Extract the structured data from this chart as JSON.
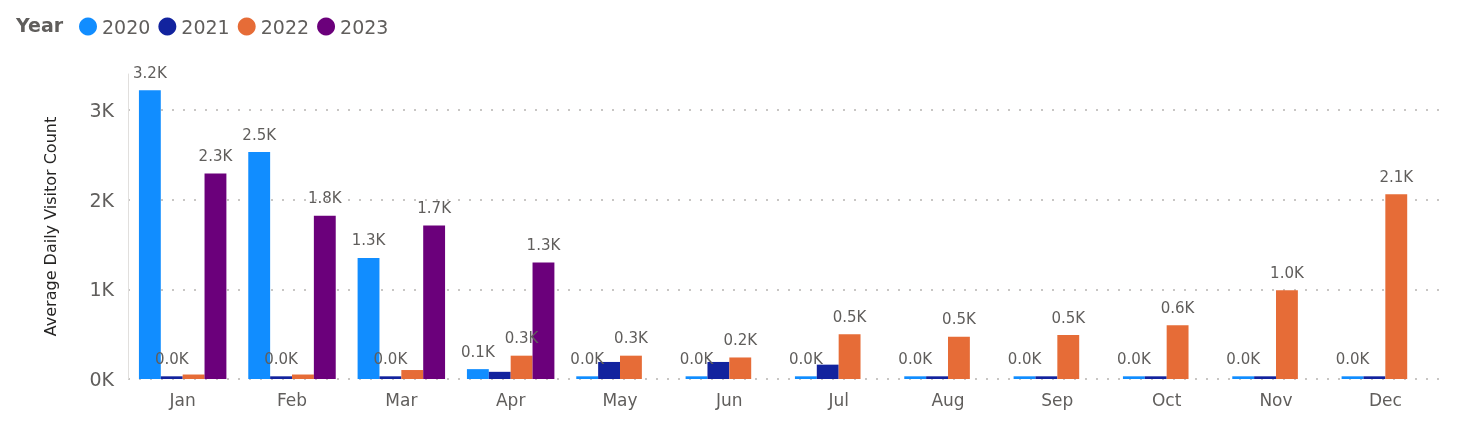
{
  "chart_data": {
    "type": "bar",
    "ylabel": "Average Daily Visitor Count",
    "legend_title": "Year",
    "legend": "top left",
    "grid": "y",
    "categories": [
      "Jan",
      "Feb",
      "Mar",
      "Apr",
      "May",
      "Jun",
      "Jul",
      "Aug",
      "Sep",
      "Oct",
      "Nov",
      "Dec"
    ],
    "ylim": [
      0,
      3400
    ],
    "yticks": [
      {
        "value": 0,
        "label": "0K"
      },
      {
        "value": 1000,
        "label": "1K"
      },
      {
        "value": 2000,
        "label": "2K"
      },
      {
        "value": 3000,
        "label": "3K"
      }
    ],
    "series": [
      {
        "name": "2020",
        "color": "#118dff",
        "values": [
          3220,
          2530,
          1350,
          110,
          30,
          30,
          30,
          30,
          30,
          30,
          30,
          30
        ],
        "value_labels": [
          "3.2K",
          "2.5K",
          "1.3K",
          "0.1K",
          "0.0K",
          "0.0K",
          "0.0K",
          "0.0K",
          "0.0K",
          "0.0K",
          "0.0K",
          "0.0K"
        ]
      },
      {
        "name": "2021",
        "color": "#12239e",
        "values": [
          30,
          30,
          30,
          80,
          190,
          190,
          160,
          30,
          30,
          30,
          30,
          30
        ],
        "value_labels": [
          "0.0K",
          "0.0K",
          "0.0K",
          null,
          null,
          null,
          null,
          null,
          null,
          null,
          null,
          null
        ]
      },
      {
        "name": "2022",
        "color": "#e66c37",
        "values": [
          50,
          50,
          100,
          260,
          260,
          240,
          500,
          470,
          490,
          600,
          990,
          2060
        ],
        "value_labels": [
          null,
          null,
          null,
          "0.3K",
          "0.3K",
          "0.2K",
          "0.5K",
          "0.5K",
          "0.5K",
          "0.6K",
          "1.0K",
          "2.1K"
        ]
      },
      {
        "name": "2023",
        "color": "#6b007b",
        "values": [
          2290,
          1820,
          1710,
          1300,
          null,
          null,
          null,
          null,
          null,
          null,
          null,
          null
        ],
        "value_labels": [
          "2.3K",
          "1.8K",
          "1.7K",
          "1.3K",
          null,
          null,
          null,
          null,
          null,
          null,
          null,
          null
        ]
      }
    ]
  }
}
